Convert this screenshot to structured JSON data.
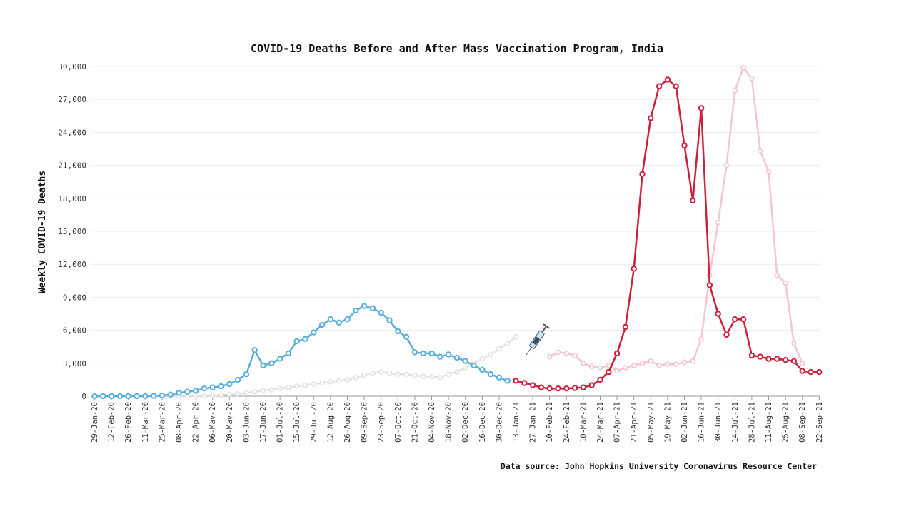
{
  "chart_data": {
    "type": "line",
    "title": "COVID-19 Deaths Before and After Mass Vaccination Program, India",
    "ylabel": "Weekly COVID-19 Deaths",
    "xlabel": "",
    "source": "Data source: John Hopkins University Coronavirus Resource Center",
    "ylim": [
      0,
      30000
    ],
    "yticks": [
      0,
      3000,
      6000,
      9000,
      12000,
      15000,
      18000,
      21000,
      24000,
      27000,
      30000
    ],
    "ytick_labels": [
      "0",
      "3,000",
      "6,000",
      "9,000",
      "12,000",
      "15,000",
      "18,000",
      "21,000",
      "24,000",
      "27,000",
      "30,000"
    ],
    "x_dates": [
      "29-Jan-20",
      "05-Feb-20",
      "12-Feb-20",
      "19-Feb-20",
      "26-Feb-20",
      "04-Mar-20",
      "11-Mar-20",
      "18-Mar-20",
      "25-Mar-20",
      "01-Apr-20",
      "08-Apr-20",
      "15-Apr-20",
      "22-Apr-20",
      "29-Apr-20",
      "06-May-20",
      "13-May-20",
      "20-May-20",
      "27-May-20",
      "03-Jun-20",
      "10-Jun-20",
      "17-Jun-20",
      "24-Jun-20",
      "01-Jul-20",
      "08-Jul-20",
      "15-Jul-20",
      "22-Jul-20",
      "29-Jul-20",
      "05-Aug-20",
      "12-Aug-20",
      "19-Aug-20",
      "26-Aug-20",
      "02-Sep-20",
      "09-Sep-20",
      "16-Sep-20",
      "23-Sep-20",
      "30-Sep-20",
      "07-Oct-20",
      "14-Oct-20",
      "21-Oct-20",
      "28-Oct-20",
      "04-Nov-20",
      "11-Nov-20",
      "18-Nov-20",
      "25-Nov-20",
      "02-Dec-20",
      "09-Dec-20",
      "16-Dec-20",
      "23-Dec-20",
      "30-Dec-20",
      "06-Jan-21",
      "13-Jan-21",
      "20-Jan-21",
      "27-Jan-21",
      "03-Feb-21",
      "10-Feb-21",
      "17-Feb-21",
      "24-Feb-21",
      "03-Mar-21",
      "10-Mar-21",
      "17-Mar-21",
      "24-Mar-21",
      "31-Mar-21",
      "07-Apr-21",
      "14-Apr-21",
      "21-Apr-21",
      "28-Apr-21",
      "05-May-21",
      "12-May-21",
      "19-May-21",
      "26-May-21",
      "02-Jun-21",
      "09-Jun-21",
      "16-Jun-21",
      "23-Jun-21",
      "30-Jun-21",
      "07-Jul-21",
      "14-Jul-21",
      "21-Jul-21",
      "28-Jul-21",
      "04-Aug-21",
      "11-Aug-21",
      "18-Aug-21",
      "25-Aug-21",
      "01-Sep-21",
      "08-Sep-21",
      "15-Sep-21",
      "22-Sep-21"
    ],
    "x_tick_labels": [
      "29-Jan-20",
      "12-Feb-20",
      "26-Feb-20",
      "11-Mar-20",
      "25-Mar-20",
      "08-Apr-20",
      "22-Apr-20",
      "06-May-20",
      "20-May-20",
      "03-Jun-20",
      "17-Jun-20",
      "01-Jul-20",
      "15-Jul-20",
      "29-Jul-20",
      "12-Aug-20",
      "26-Aug-20",
      "09-Sep-20",
      "23-Sep-20",
      "07-Oct-20",
      "21-Oct-20",
      "04-Nov-20",
      "18-Nov-20",
      "02-Dec-20",
      "16-Dec-20",
      "30-Dec-20",
      "13-Jan-21",
      "27-Jan-21",
      "10-Feb-21",
      "24-Feb-21",
      "10-Mar-21",
      "24-Mar-21",
      "07-Apr-21",
      "21-Apr-21",
      "05-May-21",
      "19-May-21",
      "02-Jun-21",
      "16-Jun-21",
      "30-Jun-21",
      "14-Jul-21",
      "28-Jul-21",
      "11-Aug-21",
      "25-Aug-21",
      "08-Sep-21",
      "22-Sep-21"
    ],
    "series": [
      {
        "name": "",
        "color": "#5aaedc",
        "start_date": "29-Jan-20",
        "values": [
          0,
          0,
          0,
          0,
          0,
          0,
          10,
          20,
          60,
          150,
          300,
          400,
          500,
          700,
          800,
          900,
          1100,
          1500,
          2000,
          4200,
          2800,
          3000,
          3400,
          3900,
          5000,
          5200,
          5800,
          6500,
          7000,
          6700,
          7000,
          7800,
          8200,
          8000,
          7600,
          6900,
          5900,
          5400,
          4000,
          3900,
          3900,
          3600,
          3800,
          3500,
          3200,
          2800,
          2400,
          2000,
          1700,
          1400
        ]
      },
      {
        "name": "",
        "color": "#cc1f3b",
        "start_date": "13-Jan-21",
        "values": [
          1400,
          1200,
          1000,
          800,
          700,
          700,
          700,
          750,
          800,
          1000,
          1500,
          2200,
          3900,
          6300,
          11600,
          20200,
          25300,
          28200,
          28800,
          28200,
          22800,
          17800,
          26200,
          10100,
          7500,
          5600,
          7000,
          7000,
          3700,
          3600,
          3400,
          3400,
          3300,
          3200,
          2300,
          2200,
          2200
        ]
      }
    ],
    "background_series": [
      {
        "name": "",
        "color": "#dedede",
        "start_date": "29-Jan-20",
        "values": [
          0,
          0,
          0,
          0,
          0,
          0,
          0,
          0,
          0,
          0,
          0,
          0,
          0,
          0,
          50,
          100,
          150,
          200,
          300,
          400,
          500,
          600,
          700,
          800,
          900,
          1000,
          1100,
          1200,
          1300,
          1400,
          1500,
          1700,
          1900,
          2100,
          2200,
          2100,
          2000,
          2000,
          1900,
          1800,
          1800,
          1700,
          2000,
          2200,
          2600,
          3000,
          3400,
          3800,
          4300,
          4800,
          5400
        ]
      },
      {
        "name": "",
        "color": "#f3bcc7",
        "start_date": "10-Feb-21",
        "values": [
          3600,
          4000,
          3900,
          3700,
          3000,
          2700,
          2600,
          2800,
          2300,
          2600,
          2800,
          3000,
          3200,
          2800,
          2900,
          2900,
          3100,
          3200,
          5200,
          11000,
          15800,
          21000,
          27800,
          29900,
          28900,
          22300,
          20400,
          11000,
          10300,
          4800,
          3000
        ]
      }
    ],
    "annotations": [
      {
        "type": "syringe-icon",
        "date": "03-Feb-21"
      }
    ]
  }
}
